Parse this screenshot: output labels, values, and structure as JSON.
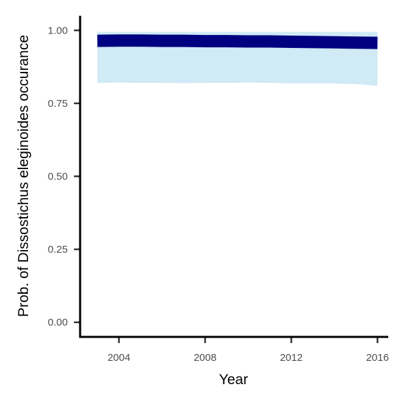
{
  "chart_data": {
    "type": "area",
    "title": "",
    "xlabel": "Year",
    "ylabel": "Prob. of  Dissostichus eleginoides  occurance",
    "xlim": [
      2002.2,
      2016.5
    ],
    "ylim": [
      -0.05,
      1.05
    ],
    "x_ticks": [
      2004,
      2008,
      2012,
      2016
    ],
    "y_ticks": [
      0.0,
      0.25,
      0.5,
      0.75,
      1.0
    ],
    "x_tick_labels": [
      "2004",
      "2008",
      "2012",
      "2016"
    ],
    "y_tick_labels": [
      "0.00",
      "0.25",
      "0.50",
      "0.75",
      "1.00"
    ],
    "grid": false,
    "legend": "none",
    "series": [
      {
        "x": [
          2003,
          2004,
          2005,
          2006,
          2007,
          2008,
          2009,
          2010,
          2011,
          2012,
          2013,
          2014,
          2015,
          2016
        ],
        "y": [
          0.964,
          0.965,
          0.965,
          0.964,
          0.964,
          0.963,
          0.963,
          0.962,
          0.962,
          0.961,
          0.96,
          0.959,
          0.958,
          0.957
        ],
        "lower": [
          0.82,
          0.821,
          0.82,
          0.82,
          0.819,
          0.82,
          0.82,
          0.821,
          0.82,
          0.818,
          0.818,
          0.818,
          0.816,
          0.81
        ],
        "upper": [
          0.995,
          0.995,
          0.995,
          0.995,
          0.995,
          0.995,
          0.995,
          0.995,
          0.995,
          0.995,
          0.995,
          0.995,
          0.995,
          0.995
        ],
        "color": "#000080",
        "ribbon_color": "#d0eaf6"
      }
    ]
  }
}
